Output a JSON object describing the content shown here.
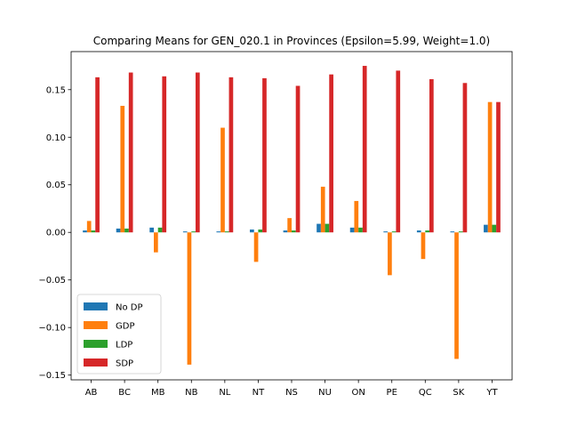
{
  "chart_data": {
    "type": "bar",
    "title": "Comparing Means for GEN_020.1 in Provinces (Epsilon=5.99, Weight=1.0)",
    "xlabel": "",
    "ylabel": "",
    "categories": [
      "AB",
      "BC",
      "MB",
      "NB",
      "NL",
      "NT",
      "NS",
      "NU",
      "ON",
      "PE",
      "QC",
      "SK",
      "YT"
    ],
    "ylim": [
      -0.155,
      0.19
    ],
    "yticks": [
      -0.15,
      -0.1,
      -0.05,
      0.0,
      0.05,
      0.1,
      0.15
    ],
    "ytick_labels": [
      "−0.15",
      "−0.10",
      "−0.05",
      "0.00",
      "0.05",
      "0.10",
      "0.15"
    ],
    "grid": false,
    "legend_position": "lower-left",
    "series": [
      {
        "name": "No DP",
        "color": "#1f77b4",
        "values": [
          0.002,
          0.004,
          0.005,
          0.001,
          0.001,
          0.003,
          0.002,
          0.009,
          0.005,
          0.001,
          0.002,
          0.001,
          0.008
        ]
      },
      {
        "name": "GDP",
        "color": "#ff7f0e",
        "values": [
          0.012,
          0.133,
          -0.021,
          -0.139,
          0.11,
          -0.031,
          0.015,
          0.048,
          0.033,
          -0.045,
          -0.028,
          -0.133,
          0.137
        ]
      },
      {
        "name": "LDP",
        "color": "#2ca02c",
        "values": [
          0.002,
          0.004,
          0.005,
          0.001,
          0.001,
          0.003,
          0.002,
          0.009,
          0.005,
          0.001,
          0.002,
          0.001,
          0.008
        ]
      },
      {
        "name": "SDP",
        "color": "#d62728",
        "values": [
          0.163,
          0.168,
          0.164,
          0.168,
          0.163,
          0.162,
          0.154,
          0.166,
          0.175,
          0.17,
          0.161,
          0.157,
          0.137
        ]
      }
    ]
  }
}
